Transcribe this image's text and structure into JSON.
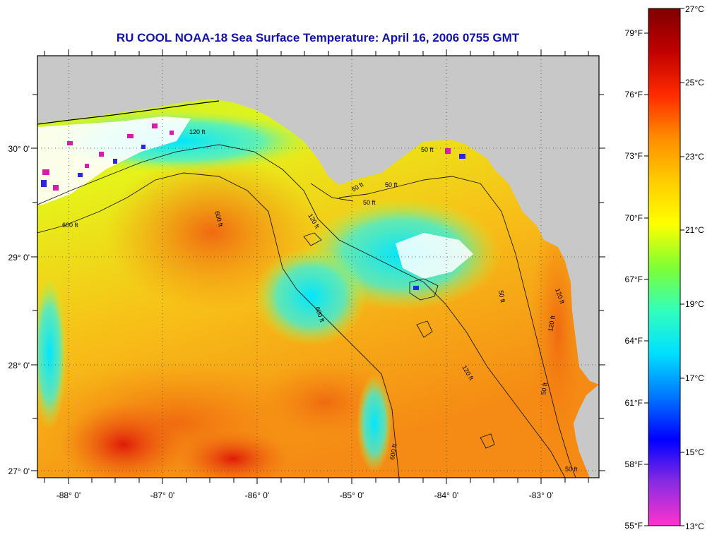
{
  "title": "RU COOL  NOAA-18  Sea Surface Temperature:  April 16, 2006 0755 GMT",
  "map": {
    "lon_labels": [
      "-88° 0'",
      "-87° 0'",
      "-86° 0'",
      "-85° 0'",
      "-84° 0'",
      "-83° 0'"
    ],
    "lat_labels": [
      "30° 0'",
      "29° 0'",
      "28° 0'",
      "27° 0'"
    ],
    "contour_labels": [
      "600 ft",
      "600 ft",
      "600 ft",
      "600 ft",
      "120 ft",
      "120 ft",
      "120 ft",
      "120 ft",
      "120 ft",
      "50 ft",
      "50 ft",
      "50 ft",
      "50 ft",
      "50 ft",
      "50 ft",
      "50 ft"
    ],
    "colors": {
      "land": "#c8c8c8",
      "cloud": "#ffffff",
      "frame": "#000000"
    }
  },
  "colorbar": {
    "f_labels": [
      "79°F",
      "76°F",
      "73°F",
      "70°F",
      "67°F",
      "64°F",
      "61°F",
      "58°F",
      "55°F"
    ],
    "c_labels": [
      "27°C",
      "25°C",
      "23°C",
      "21°C",
      "19°C",
      "17°C",
      "15°C",
      "13°C"
    ],
    "range_c": [
      13,
      27
    ],
    "stops": [
      "#ff33cc",
      "#8a2be2",
      "#0000ff",
      "#0077ff",
      "#00e0ff",
      "#33ffbb",
      "#7fff33",
      "#ffff00",
      "#ffcc00",
      "#ff8c00",
      "#ff2a00",
      "#c00000",
      "#800000"
    ]
  }
}
